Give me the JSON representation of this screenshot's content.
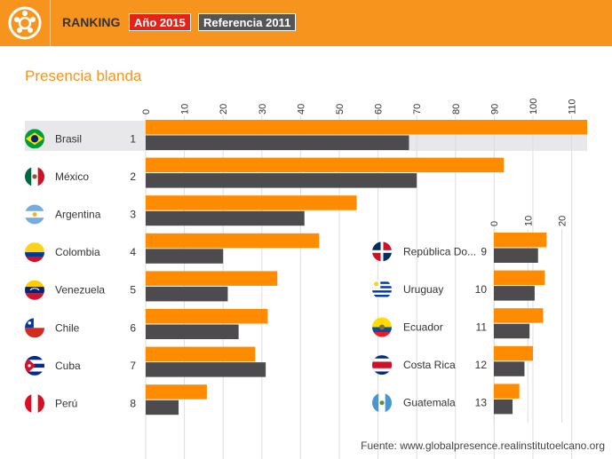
{
  "header": {
    "title": "RANKING",
    "year_button": "Año 2015",
    "reference_button": "Referencia 2011"
  },
  "colors": {
    "accent": "#f7941d",
    "series_2015": "#ff8c00",
    "series_2011": "#4d4b4d",
    "year_button": "#e2231a",
    "reference_button": "#555555"
  },
  "source": "Fuente: www.globalpresence.realinstitutoelcano.org",
  "chart_data": [
    {
      "type": "bar",
      "orientation": "horizontal",
      "title": "Presencia blanda",
      "categories": [
        "Brasil",
        "México",
        "Argentina",
        "Colombia",
        "Venezuela",
        "Chile",
        "Cuba",
        "Perú"
      ],
      "ranks": [
        "1",
        "2",
        "3",
        "4",
        "5",
        "6",
        "7",
        "8"
      ],
      "flags": [
        "brazil-flag",
        "mexico-flag",
        "argentina-flag",
        "colombia-flag",
        "venezuela-flag",
        "chile-flag",
        "cuba-flag",
        "peru-flag"
      ],
      "xticks": [
        "0",
        "10",
        "20",
        "30",
        "40",
        "50",
        "60",
        "70",
        "80",
        "90",
        "100",
        "110"
      ],
      "xlim": [
        0,
        114
      ],
      "series": [
        {
          "values": [
            114,
            92.5,
            54.5,
            44.8,
            34,
            31.5,
            28.3,
            15.8
          ]
        },
        {
          "values": [
            68,
            70,
            41,
            20,
            21.2,
            24,
            31,
            8.5
          ]
        }
      ]
    },
    {
      "type": "bar",
      "orientation": "horizontal",
      "categories": [
        "República Do...",
        "Uruguay",
        "Ecuador",
        "Costa Rica",
        "Guatemala"
      ],
      "ranks": [
        "9",
        "10",
        "11",
        "12",
        "13"
      ],
      "flags": [
        "dominican-republic-flag",
        "uruguay-flag",
        "ecuador-flag",
        "costa-rica-flag",
        "guatemala-flag"
      ],
      "xticks": [
        "0",
        "10",
        "20"
      ],
      "xlim": [
        0,
        23
      ],
      "series": [
        {
          "values": [
            15.5,
            15,
            14.5,
            11.5,
            7.5
          ]
        },
        {
          "values": [
            13,
            12,
            10.5,
            9,
            5.5
          ]
        }
      ]
    }
  ]
}
